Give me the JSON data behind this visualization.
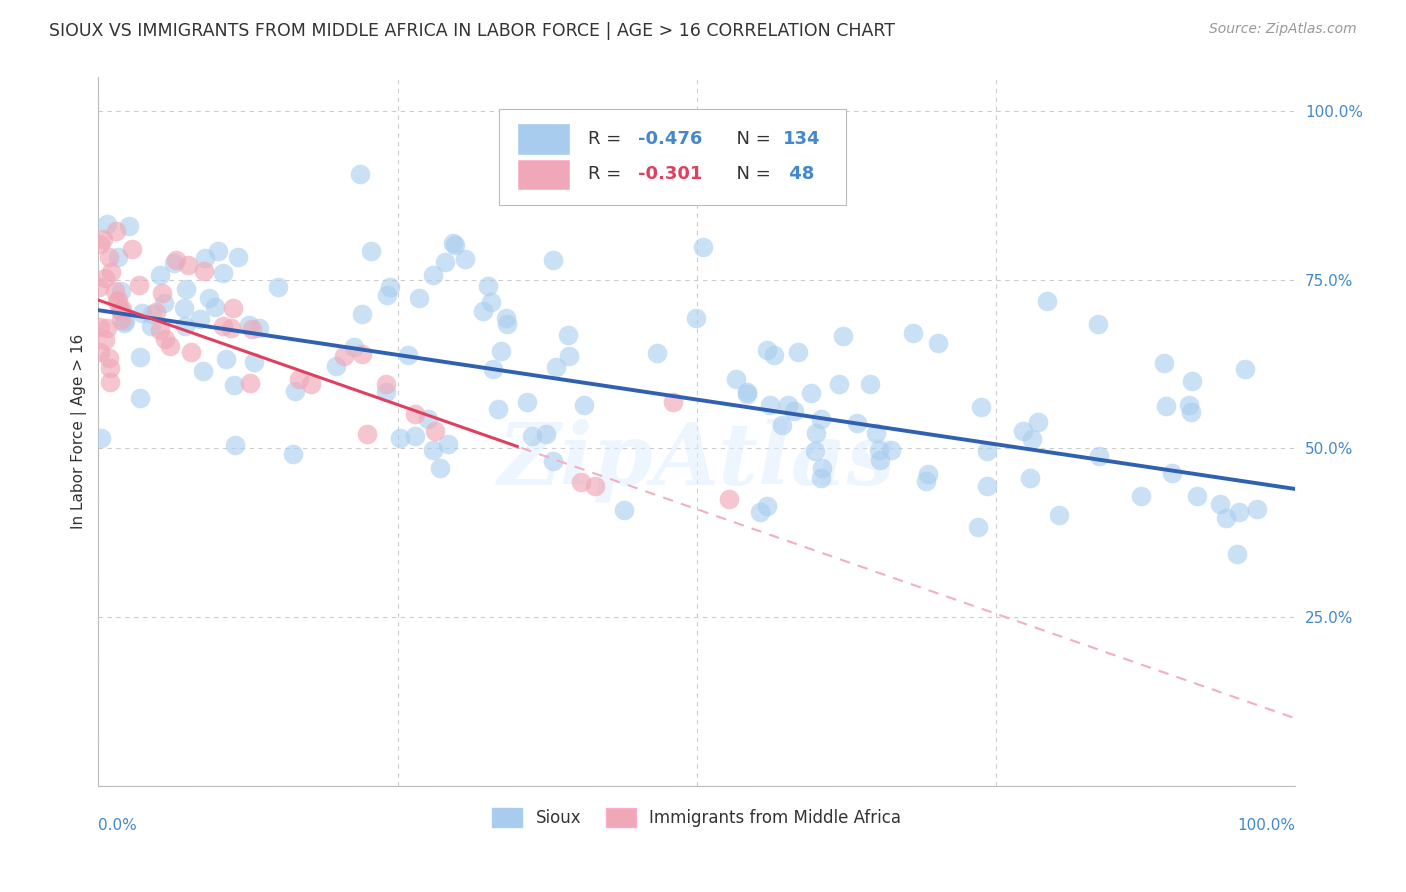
{
  "title": "SIOUX VS IMMIGRANTS FROM MIDDLE AFRICA IN LABOR FORCE | AGE > 16 CORRELATION CHART",
  "source": "Source: ZipAtlas.com",
  "ylabel": "In Labor Force | Age > 16",
  "xlim": [
    0.0,
    1.0
  ],
  "ylim": [
    0.0,
    1.05
  ],
  "ytick_values": [
    0.0,
    0.25,
    0.5,
    0.75,
    1.0
  ],
  "ytick_labels": [
    "",
    "25.0%",
    "50.0%",
    "75.0%",
    "100.0%"
  ],
  "blue_color": "#A8CCEE",
  "pink_color": "#F0A8B8",
  "blue_line_color": "#3060B0",
  "pink_line_color": "#E04060",
  "pink_dash_color": "#F0B0C0",
  "watermark": "ZipAtlas",
  "background": "#FFFFFF",
  "grid_color": "#CCCCCC",
  "title_color": "#333333",
  "axis_label_color": "#4488CC",
  "watermark_color": "#DDEEFF",
  "seed_blue": 42,
  "seed_pink": 7,
  "n_blue": 134,
  "n_pink": 48,
  "blue_intercept": 0.705,
  "blue_slope": -0.265,
  "pink_intercept": 0.72,
  "pink_slope": -0.62
}
